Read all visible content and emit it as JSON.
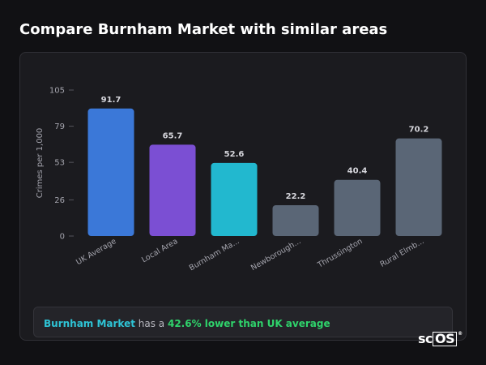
{
  "header": {
    "title": "Compare Burnham Market with similar areas"
  },
  "chart_data": {
    "type": "bar",
    "ylabel": "Crimes per 1,000",
    "xlabel": "",
    "ylim": [
      0,
      105
    ],
    "yticks": [
      0,
      26,
      53,
      79,
      105
    ],
    "ytick_labels": [
      "0",
      "26",
      "53",
      "79",
      "105"
    ],
    "grid": false,
    "categories": [
      "UK Average",
      "Local Area",
      "Burnham Ma...",
      "Newborough...",
      "Thrussington",
      "Rural Elmb..."
    ],
    "values": [
      91.7,
      65.7,
      52.6,
      22.2,
      40.4,
      70.2
    ],
    "value_labels": [
      "91.7",
      "65.7",
      "52.6",
      "22.2",
      "40.4",
      "70.2"
    ],
    "colors": [
      "#3b78d8",
      "#7b4fd3",
      "#22b8cf",
      "#5a6676",
      "#5a6676",
      "#5a6676"
    ]
  },
  "summary": {
    "place": "Burnham Market",
    "middle": " has a ",
    "delta": "42.6% lower than UK average"
  },
  "branding": {
    "logo_prefix": "sc",
    "logo_box": "OS",
    "logo_mark": "®"
  }
}
